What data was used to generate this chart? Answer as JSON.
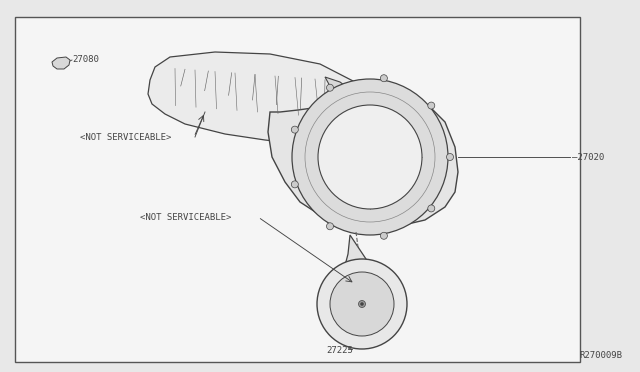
{
  "bg_color": "#e8e8e8",
  "diagram_bg": "#f5f5f5",
  "border_color": "#555555",
  "line_color": "#444444",
  "text_color": "#444444",
  "ref_code": "R270009B",
  "font_size_labels": 6.5,
  "font_size_ref": 6.5,
  "label_27080": "27080",
  "label_27020": "—27020",
  "label_27225": "27225",
  "label_ns1": "<NOT SERVICEABLE>",
  "label_ns2": "<NOT SERVICEABLE>"
}
